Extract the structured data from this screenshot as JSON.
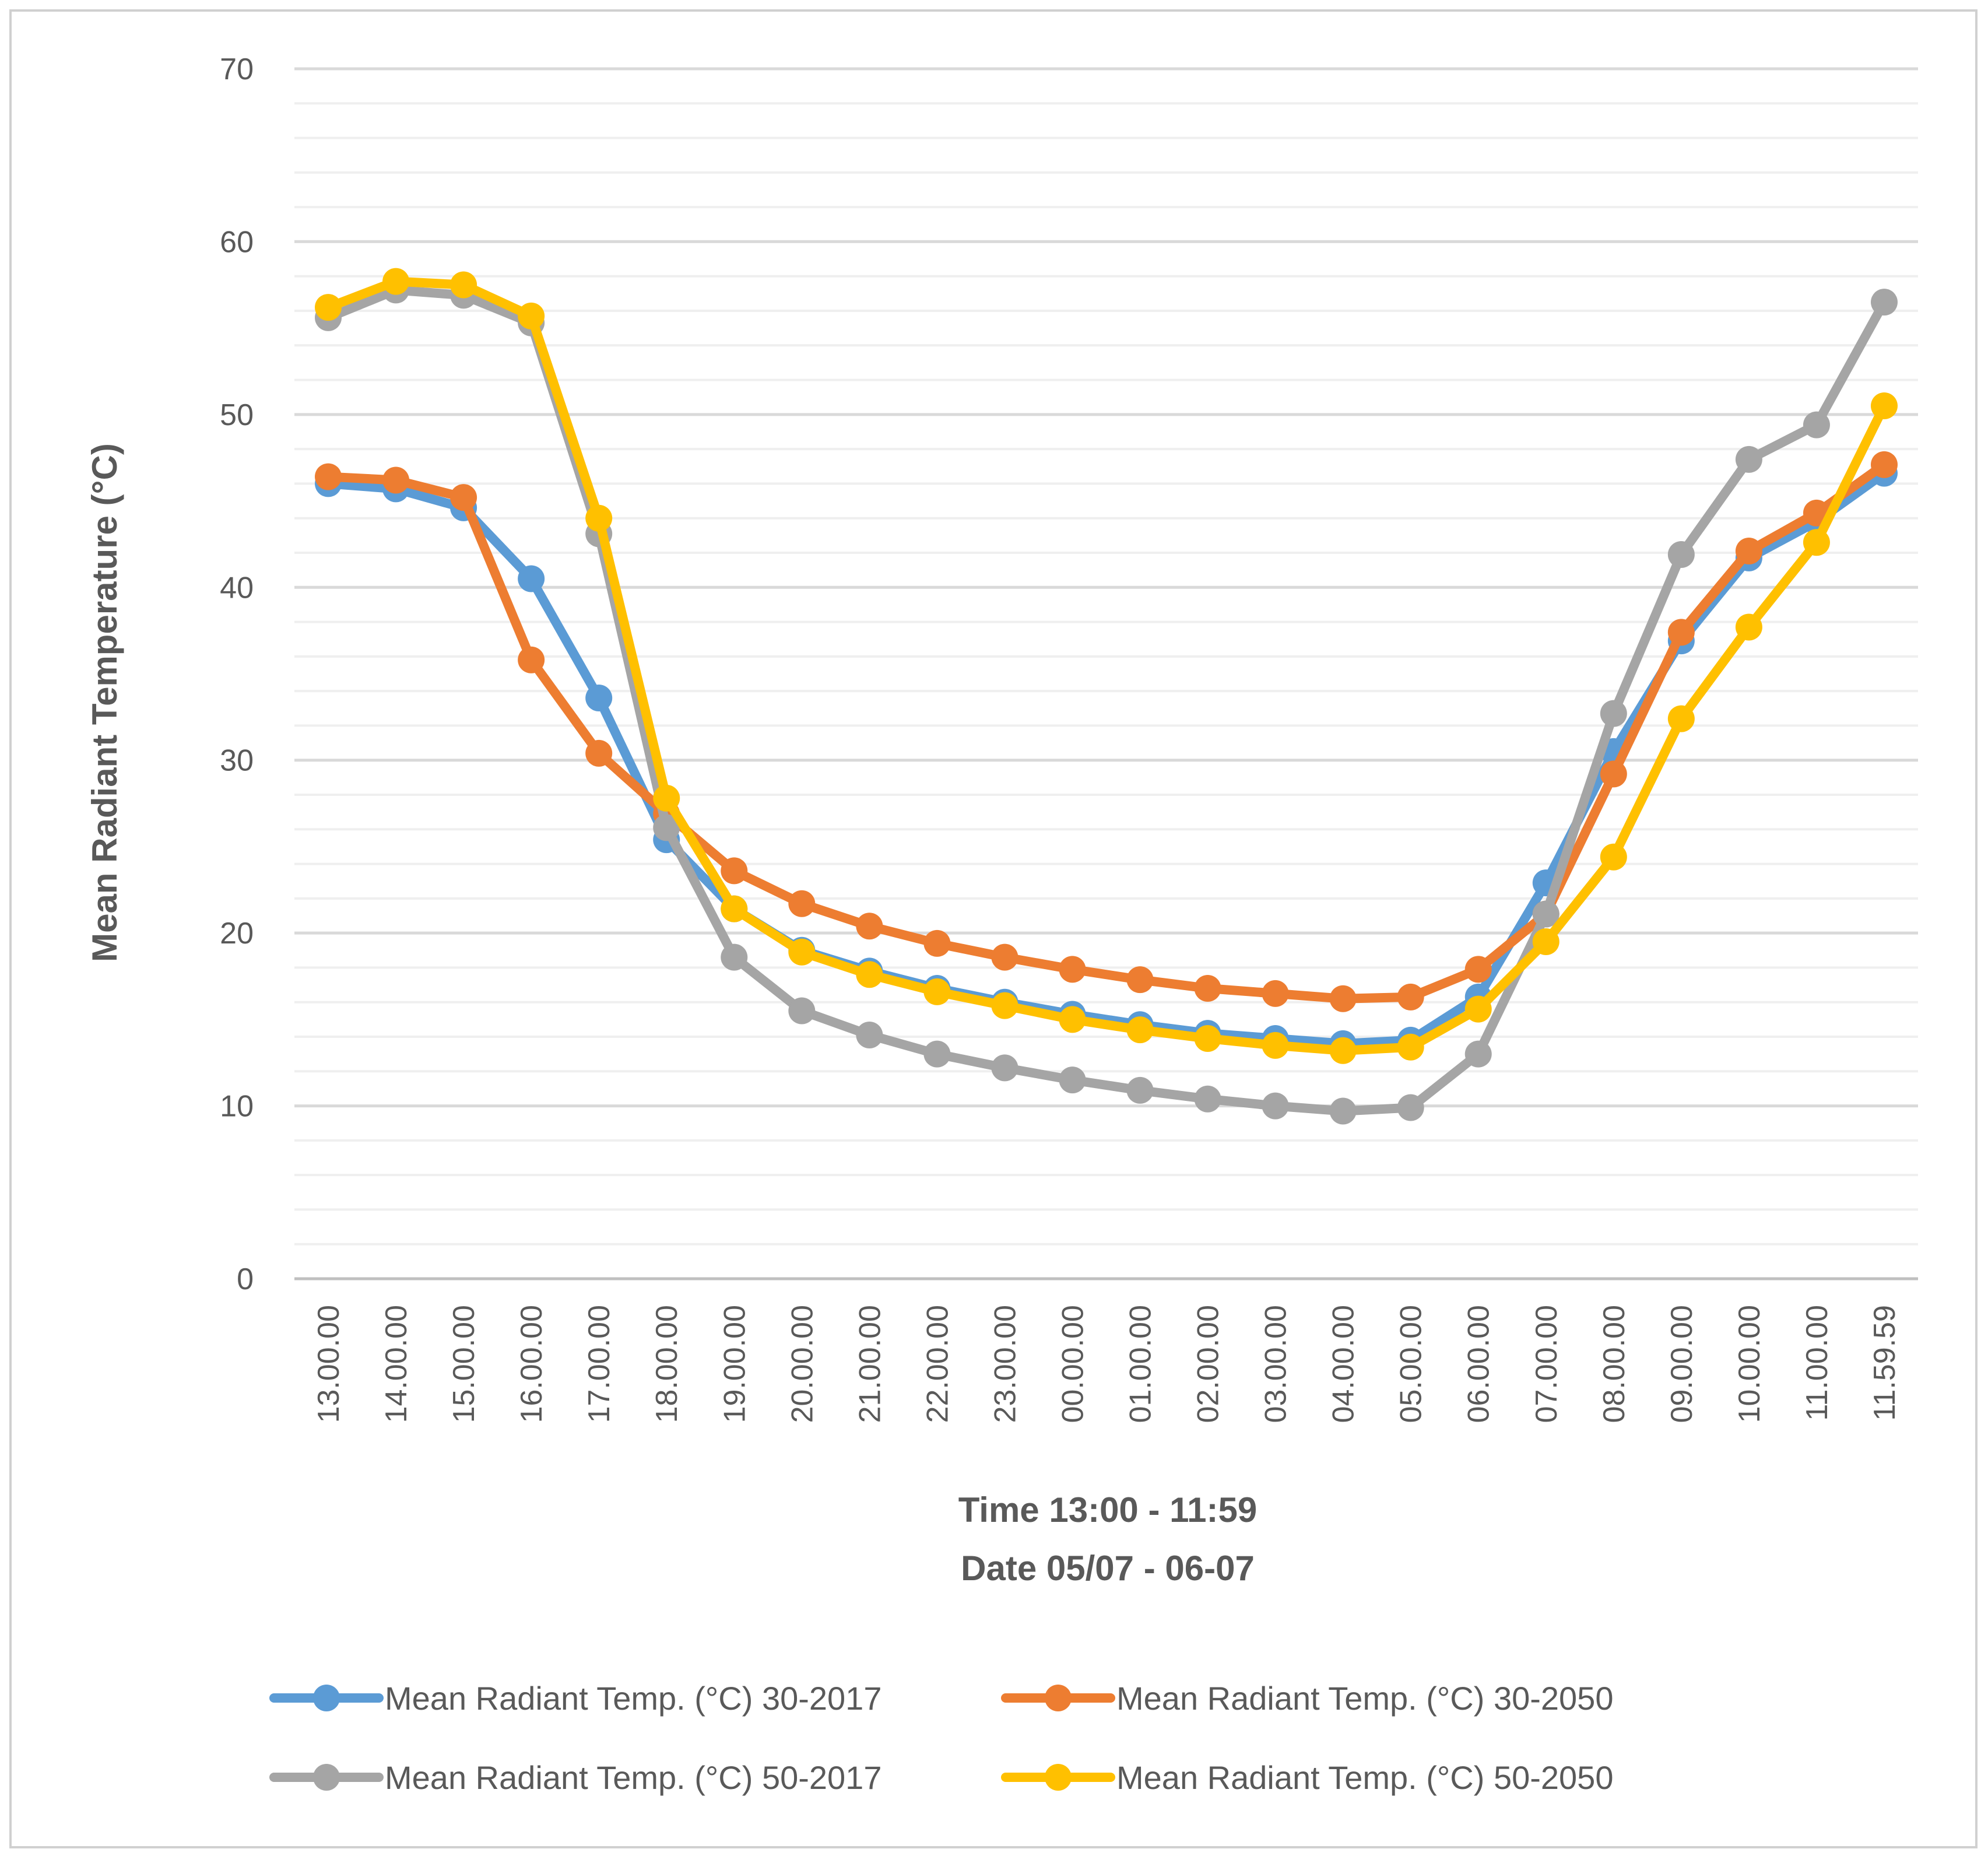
{
  "chart_data": {
    "type": "line",
    "title": "",
    "xlabel_lines": [
      "Time 13:00 - 11:59",
      "Date 05/07 - 06-07"
    ],
    "ylabel": "Mean Radiant Temperature  (°C)",
    "ylim": [
      0,
      70
    ],
    "y_major_ticks": [
      0,
      10,
      20,
      30,
      40,
      50,
      60,
      70
    ],
    "y_minor_step": 2,
    "grid": true,
    "legend_position": "bottom",
    "categories": [
      "13.00.00",
      "14.00.00",
      "15.00.00",
      "16.00.00",
      "17.00.00",
      "18.00.00",
      "19.00.00",
      "20.00.00",
      "21.00.00",
      "22.00.00",
      "23.00.00",
      "00.00.00",
      "01.00.00",
      "02.00.00",
      "03.00.00",
      "04.00.00",
      "05.00.00",
      "06.00.00",
      "07.00.00",
      "08.00.00",
      "09.00.00",
      "10.00.00",
      "11.00.00",
      "11.59.59"
    ],
    "series": [
      {
        "name": "Mean Radiant Temp.  (°C) 30-2017",
        "color": "#5B9BD5",
        "values": [
          46.0,
          45.7,
          44.6,
          40.5,
          33.6,
          25.4,
          21.4,
          19.0,
          17.8,
          16.8,
          16.0,
          15.3,
          14.7,
          14.2,
          13.9,
          13.6,
          13.8,
          16.3,
          22.9,
          30.5,
          36.9,
          41.7,
          43.8,
          46.6
        ]
      },
      {
        "name": "Mean Radiant Temp.  (°C) 30-2050",
        "color": "#ED7D31",
        "values": [
          46.4,
          46.2,
          45.2,
          35.8,
          30.4,
          26.9,
          23.6,
          21.7,
          20.4,
          19.4,
          18.6,
          17.9,
          17.3,
          16.8,
          16.5,
          16.2,
          16.3,
          17.9,
          21.1,
          29.2,
          37.4,
          42.1,
          44.3,
          47.1
        ]
      },
      {
        "name": "Mean Radiant Temp.  (°C) 50-2017",
        "color": "#A5A5A5",
        "values": [
          55.6,
          57.2,
          56.9,
          55.3,
          43.1,
          26.1,
          18.6,
          15.5,
          14.1,
          13.0,
          12.2,
          11.5,
          10.9,
          10.4,
          10.0,
          9.7,
          9.9,
          13.0,
          21.1,
          32.7,
          41.9,
          47.4,
          49.4,
          56.5
        ]
      },
      {
        "name": "Mean Radiant Temp.  (°C) 50-2050",
        "color": "#FFC000",
        "values": [
          56.2,
          57.7,
          57.5,
          55.7,
          44.0,
          27.8,
          21.4,
          18.9,
          17.6,
          16.6,
          15.8,
          15.0,
          14.4,
          13.9,
          13.5,
          13.2,
          13.4,
          15.6,
          19.5,
          24.4,
          32.4,
          37.7,
          42.6,
          50.5
        ]
      }
    ]
  }
}
